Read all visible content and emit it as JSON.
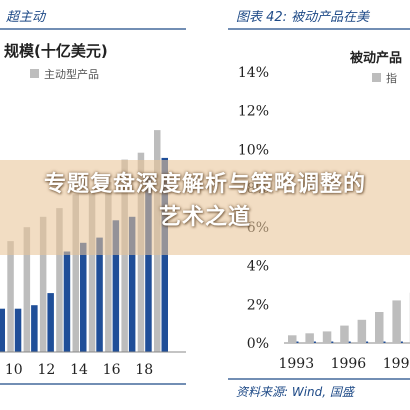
{
  "banner": {
    "text": "专题复盘深度解析与策略调整的艺术之道"
  },
  "left_panel": {
    "caption": "超主动",
    "scale_title": "规模(十亿美元)",
    "legend_label": "主动型产品",
    "series_colors": {
      "passive": "#bdbdbd",
      "active": "#1f4e98"
    }
  },
  "right_panel": {
    "caption": "图表 42: 被动产品在美",
    "chart_title": "被动产品",
    "legend_label": "指",
    "source_text": "资料来源: Wind, 国盛",
    "bar_color": "#bdbdbd"
  },
  "chart_data": [
    {
      "type": "bar",
      "title": "规模(十亿美元)",
      "x": [
        9,
        10,
        11,
        12,
        13,
        14,
        15,
        16,
        17,
        18,
        19
      ],
      "x_tick_labels": [
        "10",
        "12",
        "14",
        "16",
        "18"
      ],
      "series": [
        {
          "name": "",
          "color": "#bdbdbd",
          "values": [
            7.6,
            6.4,
            7.2,
            7.8,
            8.3,
            9.1,
            9.3,
            9.8,
            11.1,
            11.5,
            12.8
          ]
        },
        {
          "name": "主动型产品",
          "color": "#1f4e98",
          "values": [
            2.5,
            2.5,
            2.7,
            3.4,
            5.8,
            6.3,
            6.6,
            7.6,
            7.8,
            10.1,
            11.2
          ]
        }
      ],
      "ylim": [
        0,
        15
      ],
      "grid": false,
      "legend": "top-left"
    },
    {
      "type": "bar",
      "title": "被动产品",
      "x": [
        1993,
        1994,
        1995,
        1996,
        1997,
        1998,
        1999,
        2000
      ],
      "x_tick_labels": [
        "1993",
        "1996",
        "1999"
      ],
      "y_tick_labels": [
        "0%",
        "2%",
        "4%",
        "6%",
        "8%",
        "10%",
        "12%",
        "14%"
      ],
      "series": [
        {
          "name": "指",
          "color": "#bdbdbd",
          "values": [
            0.4,
            0.5,
            0.6,
            0.9,
            1.2,
            1.6,
            2.2,
            2.6
          ]
        }
      ],
      "ylim": [
        0,
        14
      ],
      "yticks": [
        0,
        2,
        4,
        6,
        8,
        10,
        12,
        14
      ],
      "grid": false,
      "legend": "top-right"
    }
  ]
}
